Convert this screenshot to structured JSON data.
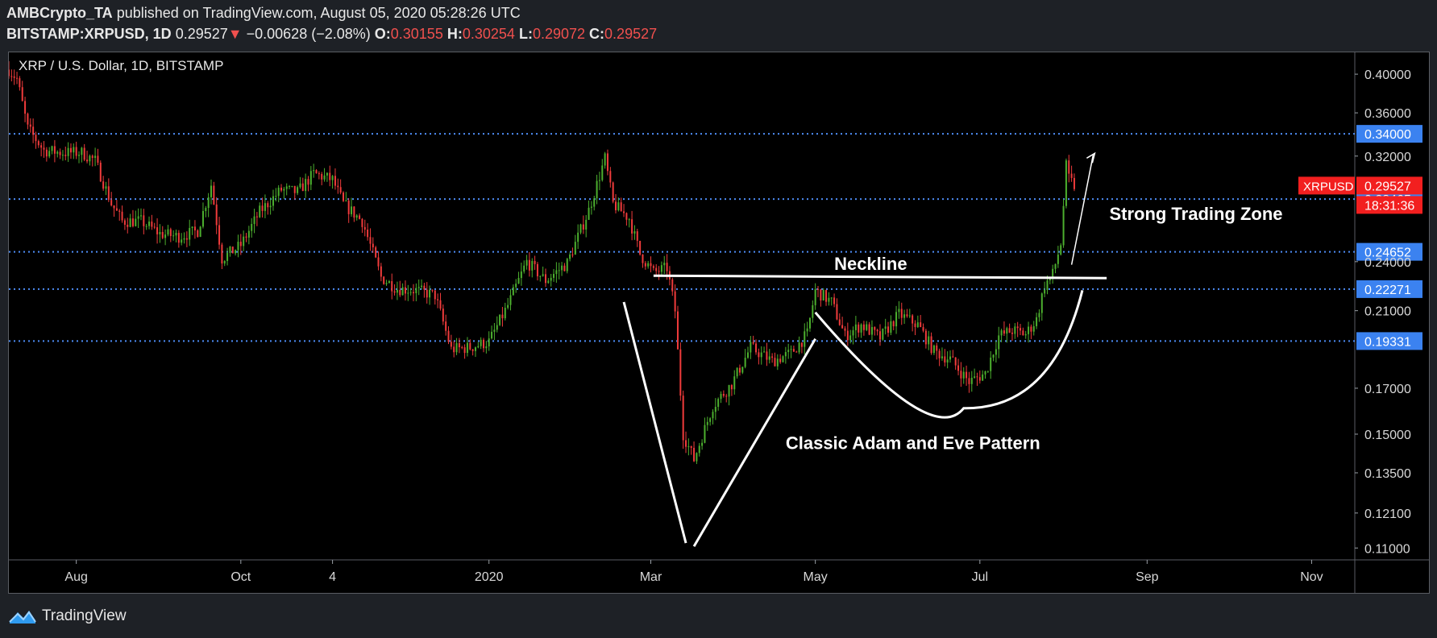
{
  "header": {
    "author": "AMBCrypto_TA",
    "published": "published on TradingView.com, August 05, 2020 05:28:26 UTC",
    "symbol": "BITSTAMP:XRPUSD, 1D",
    "last": "0.29527",
    "arrow": "▼",
    "change": "−0.00628 (−2.08%)",
    "o_label": "O:",
    "o_value": "0.30155",
    "h_label": "H:",
    "h_value": "0.30254",
    "l_label": "L:",
    "l_value": "0.29072",
    "c_label": "C:",
    "c_value": "0.29527"
  },
  "footer": {
    "brand": "TradingView",
    "brand_icon": "tradingview-logo-icon"
  },
  "colors": {
    "up": "#26a69a",
    "up_bright": "#4caf2e",
    "down": "#ef3b3b",
    "level_line": "#4d8cf5",
    "level_label_bg": "#3b82f0",
    "price_label_bg": "#f21f1f",
    "annotation": "#ffffff",
    "background": "#000000"
  },
  "chart_data": {
    "type": "candlestick",
    "title": "XRP / U.S. Dollar, 1D, BITSTAMP",
    "x_tick_labels": [
      "Aug",
      "Oct",
      "4",
      "2020",
      "Mar",
      "May",
      "Jul",
      "Sep",
      "Nov"
    ],
    "x_tick_dates": [
      "2019-08-01",
      "2019-10-01",
      "2019-11-04",
      "2020-01-01",
      "2020-03-01",
      "2020-05-01",
      "2020-07-01",
      "2020-09-01",
      "2020-11-01"
    ],
    "x_range": [
      "2019-07-07",
      "2020-11-17"
    ],
    "y_tick_labels": [
      "0.40000",
      "0.36000",
      "0.32000",
      "0.24000",
      "0.21000",
      "0.17000",
      "0.15000",
      "0.13500",
      "0.12100",
      "0.11000"
    ],
    "y_scale": "log",
    "y_range": [
      0.1065,
      0.4245
    ],
    "horizontal_levels": [
      "0.34000",
      "0.28465",
      "0.24652",
      "0.22271",
      "0.19331"
    ],
    "current_price": {
      "label": "XRPUSD",
      "value": "0.29527",
      "countdown": "18:31:36"
    },
    "annotations": {
      "neckline": "Neckline",
      "pattern": "Classic Adam and Eve Pattern",
      "zone": "Strong Trading Zone"
    },
    "neckline_price": 0.2305,
    "anchors": [
      [
        "2019-07-07",
        0.405
      ],
      [
        "2019-07-10",
        0.395
      ],
      [
        "2019-07-14",
        0.345
      ],
      [
        "2019-07-20",
        0.325
      ],
      [
        "2019-07-27",
        0.323
      ],
      [
        "2019-08-03",
        0.323
      ],
      [
        "2019-08-08",
        0.316
      ],
      [
        "2019-08-14",
        0.281
      ],
      [
        "2019-08-18",
        0.268
      ],
      [
        "2019-08-25",
        0.268
      ],
      [
        "2019-09-01",
        0.259
      ],
      [
        "2019-09-08",
        0.257
      ],
      [
        "2019-09-15",
        0.261
      ],
      [
        "2019-09-20",
        0.296
      ],
      [
        "2019-09-24",
        0.242
      ],
      [
        "2019-10-01",
        0.251
      ],
      [
        "2019-10-08",
        0.275
      ],
      [
        "2019-10-16",
        0.292
      ],
      [
        "2019-10-22",
        0.29
      ],
      [
        "2019-10-28",
        0.305
      ],
      [
        "2019-11-04",
        0.3
      ],
      [
        "2019-11-08",
        0.281
      ],
      [
        "2019-11-15",
        0.268
      ],
      [
        "2019-11-22",
        0.23
      ],
      [
        "2019-11-28",
        0.223
      ],
      [
        "2019-12-05",
        0.222
      ],
      [
        "2019-12-12",
        0.219
      ],
      [
        "2019-12-18",
        0.189
      ],
      [
        "2019-12-25",
        0.19
      ],
      [
        "2020-01-01",
        0.193
      ],
      [
        "2020-01-08",
        0.213
      ],
      [
        "2020-01-15",
        0.24
      ],
      [
        "2020-01-22",
        0.228
      ],
      [
        "2020-01-30",
        0.239
      ],
      [
        "2020-02-07",
        0.276
      ],
      [
        "2020-02-13",
        0.318
      ],
      [
        "2020-02-16",
        0.281
      ],
      [
        "2020-02-22",
        0.27
      ],
      [
        "2020-02-26",
        0.245
      ],
      [
        "2020-03-02",
        0.233
      ],
      [
        "2020-03-07",
        0.236
      ],
      [
        "2020-03-10",
        0.21
      ],
      [
        "2020-03-13",
        0.15
      ],
      [
        "2020-03-17",
        0.14
      ],
      [
        "2020-03-24",
        0.162
      ],
      [
        "2020-03-31",
        0.172
      ],
      [
        "2020-04-07",
        0.19
      ],
      [
        "2020-04-15",
        0.183
      ],
      [
        "2020-04-22",
        0.187
      ],
      [
        "2020-04-28",
        0.197
      ],
      [
        "2020-05-01",
        0.222
      ],
      [
        "2020-05-07",
        0.215
      ],
      [
        "2020-05-12",
        0.196
      ],
      [
        "2020-05-18",
        0.202
      ],
      [
        "2020-05-25",
        0.195
      ],
      [
        "2020-06-01",
        0.208
      ],
      [
        "2020-06-08",
        0.202
      ],
      [
        "2020-06-14",
        0.188
      ],
      [
        "2020-06-20",
        0.184
      ],
      [
        "2020-06-27",
        0.173
      ],
      [
        "2020-07-03",
        0.177
      ],
      [
        "2020-07-08",
        0.196
      ],
      [
        "2020-07-13",
        0.199
      ],
      [
        "2020-07-18",
        0.197
      ],
      [
        "2020-07-22",
        0.205
      ],
      [
        "2020-07-25",
        0.225
      ],
      [
        "2020-07-28",
        0.232
      ],
      [
        "2020-07-31",
        0.252
      ],
      [
        "2020-08-02",
        0.311
      ],
      [
        "2020-08-03",
        0.301
      ],
      [
        "2020-08-05",
        0.295
      ]
    ]
  }
}
